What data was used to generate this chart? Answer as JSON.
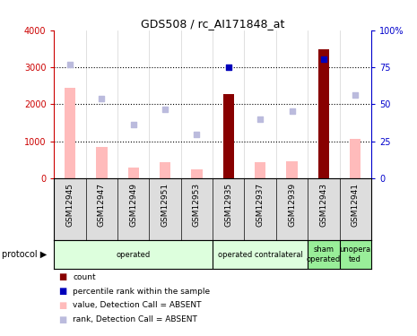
{
  "title": "GDS508 / rc_AI171848_at",
  "samples": [
    "GSM12945",
    "GSM12947",
    "GSM12949",
    "GSM12951",
    "GSM12953",
    "GSM12935",
    "GSM12937",
    "GSM12939",
    "GSM12943",
    "GSM12941"
  ],
  "count_values": [
    0,
    0,
    0,
    0,
    0,
    2270,
    0,
    0,
    3480,
    0
  ],
  "percentile_values": [
    0,
    0,
    0,
    0,
    0,
    3000,
    0,
    0,
    3230,
    0
  ],
  "pink_bar_values": [
    2450,
    840,
    295,
    430,
    230,
    0,
    420,
    460,
    0,
    1060
  ],
  "blue_square_values": [
    3080,
    2160,
    1450,
    1870,
    1190,
    0,
    1600,
    1810,
    0,
    2240
  ],
  "ylim_left": [
    0,
    4000
  ],
  "ylim_right": [
    0,
    100
  ],
  "yticks_left": [
    0,
    1000,
    2000,
    3000,
    4000
  ],
  "yticks_right": [
    0,
    25,
    50,
    75,
    100
  ],
  "yticklabels_right": [
    "0",
    "25",
    "50",
    "75",
    "100%"
  ],
  "left_axis_color": "#cc0000",
  "right_axis_color": "#0000cc",
  "count_color": "#880000",
  "percentile_color": "#0000bb",
  "pink_bar_color": "#ffbbbb",
  "blue_square_color": "#bbbbdd",
  "dotted_line_color": "#000000",
  "protocols": [
    {
      "label": "operated",
      "start": 0,
      "end": 5,
      "color": "#ddffdd"
    },
    {
      "label": "operated contralateral",
      "start": 5,
      "end": 8,
      "color": "#ddffdd"
    },
    {
      "label": "sham\noperated",
      "start": 8,
      "end": 9,
      "color": "#99ee99"
    },
    {
      "label": "unopera\nted",
      "start": 9,
      "end": 10,
      "color": "#99ee99"
    }
  ],
  "legend_items": [
    {
      "label": "count",
      "color": "#880000"
    },
    {
      "label": "percentile rank within the sample",
      "color": "#0000bb"
    },
    {
      "label": "value, Detection Call = ABSENT",
      "color": "#ffbbbb"
    },
    {
      "label": "rank, Detection Call = ABSENT",
      "color": "#bbbbdd"
    }
  ],
  "bar_width": 0.35,
  "square_size": 25
}
